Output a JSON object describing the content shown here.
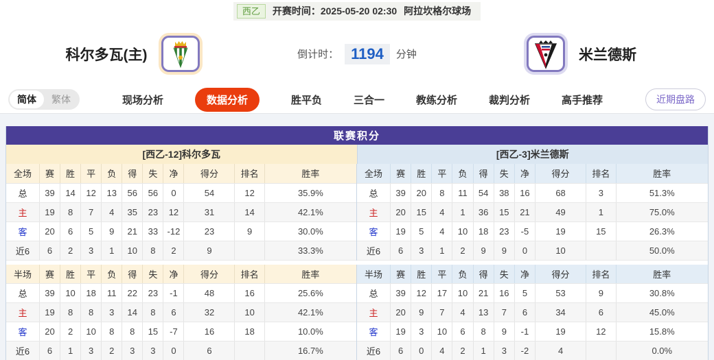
{
  "top_bar": {
    "league_badge": "西乙",
    "kickoff_label": "开赛时间：",
    "kickoff_time": "2025-05-20 02:30",
    "venue": "阿拉坎格尔球场"
  },
  "header": {
    "home_team": "科尔多瓦(主)",
    "away_team": "米兰德斯",
    "home_logo": "cordoba-crest",
    "away_logo": "mirandes-crest",
    "countdown_label": "倒计时：",
    "countdown_value": "1194",
    "countdown_unit": "分钟"
  },
  "nav": {
    "lang_simplified": "简体",
    "lang_traditional": "繁体",
    "tabs": [
      "现场分析",
      "数据分析",
      "胜平负",
      "三合一",
      "教练分析",
      "裁判分析",
      "高手推荐"
    ],
    "active_tab": "数据分析",
    "recent_link": "近期盘路"
  },
  "league_table": {
    "title": "联赛积分",
    "home_header": "[西乙-12]科尔多瓦",
    "away_header": "[西乙-3]米兰德斯",
    "columns_full": [
      "全场",
      "赛",
      "胜",
      "平",
      "负",
      "得",
      "失",
      "净",
      "得分",
      "排名",
      "胜率"
    ],
    "columns_half": [
      "半场",
      "赛",
      "胜",
      "平",
      "负",
      "得",
      "失",
      "净",
      "得分",
      "排名",
      "胜率"
    ],
    "home_full": [
      [
        "总",
        "39",
        "14",
        "12",
        "13",
        "56",
        "56",
        "0",
        "54",
        "12",
        "35.9%"
      ],
      [
        "主",
        "19",
        "8",
        "7",
        "4",
        "35",
        "23",
        "12",
        "31",
        "14",
        "42.1%"
      ],
      [
        "客",
        "20",
        "6",
        "5",
        "9",
        "21",
        "33",
        "-12",
        "23",
        "9",
        "30.0%"
      ],
      [
        "近6",
        "6",
        "2",
        "3",
        "1",
        "10",
        "8",
        "2",
        "9",
        "",
        "33.3%"
      ]
    ],
    "home_half": [
      [
        "总",
        "39",
        "10",
        "18",
        "11",
        "22",
        "23",
        "-1",
        "48",
        "16",
        "25.6%"
      ],
      [
        "主",
        "19",
        "8",
        "8",
        "3",
        "14",
        "8",
        "6",
        "32",
        "10",
        "42.1%"
      ],
      [
        "客",
        "20",
        "2",
        "10",
        "8",
        "8",
        "15",
        "-7",
        "16",
        "18",
        "10.0%"
      ],
      [
        "近6",
        "6",
        "1",
        "3",
        "2",
        "3",
        "3",
        "0",
        "6",
        "",
        "16.7%"
      ]
    ],
    "away_full": [
      [
        "总",
        "39",
        "20",
        "8",
        "11",
        "54",
        "38",
        "16",
        "68",
        "3",
        "51.3%"
      ],
      [
        "主",
        "20",
        "15",
        "4",
        "1",
        "36",
        "15",
        "21",
        "49",
        "1",
        "75.0%"
      ],
      [
        "客",
        "19",
        "5",
        "4",
        "10",
        "18",
        "23",
        "-5",
        "19",
        "15",
        "26.3%"
      ],
      [
        "近6",
        "6",
        "3",
        "1",
        "2",
        "9",
        "9",
        "0",
        "10",
        "",
        "50.0%"
      ]
    ],
    "away_half": [
      [
        "总",
        "39",
        "12",
        "17",
        "10",
        "21",
        "16",
        "5",
        "53",
        "9",
        "30.8%"
      ],
      [
        "主",
        "20",
        "9",
        "7",
        "4",
        "13",
        "7",
        "6",
        "34",
        "6",
        "45.0%"
      ],
      [
        "客",
        "19",
        "3",
        "10",
        "6",
        "8",
        "9",
        "-1",
        "19",
        "12",
        "15.8%"
      ],
      [
        "近6",
        "6",
        "0",
        "4",
        "2",
        "1",
        "3",
        "-2",
        "4",
        "",
        "0.0%"
      ]
    ]
  },
  "colors": {
    "header_purple": "#4a3e96",
    "accent_orange": "#ea3d0e",
    "home_cream": "#fbeecd",
    "away_blue": "#dbe7f2",
    "home_row_red": "#cc2626",
    "away_row_blue": "#2338cc",
    "league_green": "#5f9c3f",
    "countdown_blue": "#1f5fc4"
  }
}
